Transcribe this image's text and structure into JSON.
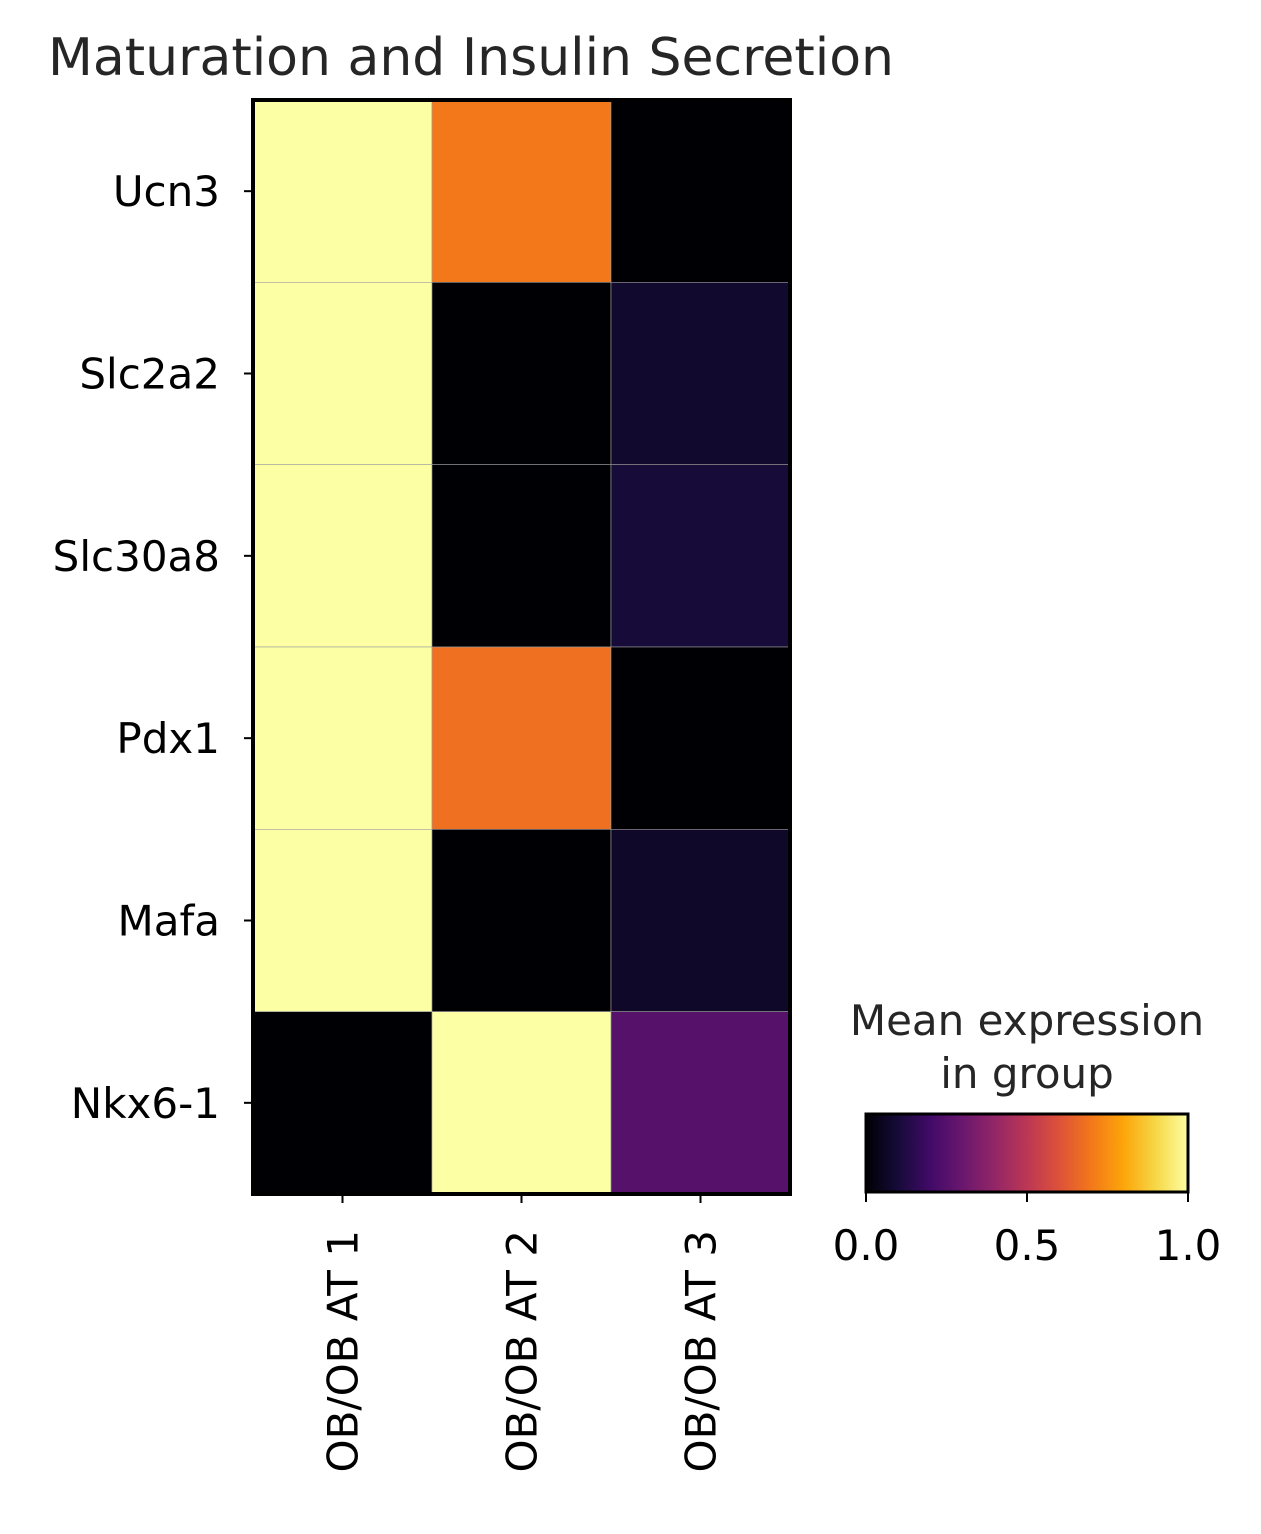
{
  "chart_data": {
    "type": "heatmap",
    "title": "Maturation and Insulin Secretion",
    "rows": [
      "Ucn3",
      "Slc2a2",
      "Slc30a8",
      "Pdx1",
      "Mafa",
      "Nkx6-1"
    ],
    "columns": [
      "OB/OB AT 1",
      "OB/OB AT 2",
      "OB/OB AT 3"
    ],
    "values": [
      [
        1.0,
        0.7,
        0.0
      ],
      [
        1.0,
        0.0,
        0.08
      ],
      [
        1.0,
        0.0,
        0.1
      ],
      [
        1.0,
        0.68,
        0.0
      ],
      [
        1.0,
        0.0,
        0.07
      ],
      [
        0.0,
        1.0,
        0.25
      ]
    ],
    "colorbar": {
      "title_line1": "Mean expression",
      "title_line2": "in group",
      "colormap": "inferno",
      "range": [
        0.0,
        1.0
      ],
      "ticks": [
        "0.0",
        "0.5",
        "1.0"
      ]
    },
    "grid": false,
    "legend_position": "bottom-right"
  }
}
